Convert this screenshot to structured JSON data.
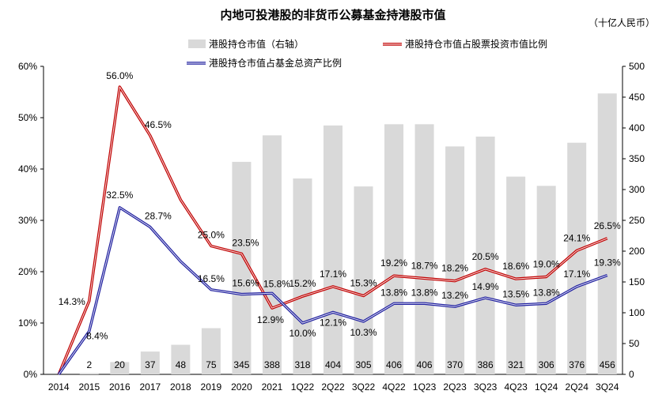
{
  "chart_data": {
    "type": "bar+line",
    "title": "内地可投港股的非货币公募基金持港股市值",
    "unit_label": "（十亿人民币）",
    "categories": [
      "2014",
      "2015",
      "2016",
      "2017",
      "2018",
      "2019",
      "2020",
      "2021",
      "1Q22",
      "2Q22",
      "3Q22",
      "4Q22",
      "1Q23",
      "2Q23",
      "3Q23",
      "4Q23",
      "1Q24",
      "2Q24",
      "3Q24"
    ],
    "left_axis": {
      "min": 0,
      "max": 60,
      "step": 10,
      "tick_labels": [
        "0%",
        "10%",
        "20%",
        "30%",
        "40%",
        "50%",
        "60%"
      ]
    },
    "right_axis": {
      "min": 0,
      "max": 500,
      "step": 50,
      "tick_labels": [
        "0",
        "50",
        "100",
        "150",
        "200",
        "250",
        "300",
        "350",
        "400",
        "450",
        "500"
      ]
    },
    "series": [
      {
        "name": "港股持仓市值（右轴）",
        "type": "bar",
        "axis": "right",
        "color": "#d9d9d9",
        "values": [
          0,
          2,
          20,
          37,
          48,
          75,
          345,
          388,
          318,
          404,
          305,
          406,
          406,
          370,
          386,
          321,
          306,
          376,
          456
        ],
        "labels": [
          "",
          "2",
          "20",
          "37",
          "48",
          "75",
          "345",
          "388",
          "318",
          "404",
          "305",
          "406",
          "406",
          "370",
          "386",
          "321",
          "306",
          "376",
          "456"
        ]
      },
      {
        "name": "港股持仓市值占股票投资市值比例",
        "type": "line",
        "axis": "left",
        "color": "#c00000",
        "values": [
          0,
          14.3,
          56.0,
          46.5,
          34.0,
          25.0,
          23.5,
          12.9,
          15.2,
          17.1,
          15.3,
          19.2,
          18.7,
          18.2,
          20.5,
          18.6,
          19.0,
          24.1,
          26.5
        ],
        "labels": [
          "",
          "14.3%",
          "56.0%",
          "46.5%",
          "",
          "25.0%",
          "23.5%",
          "12.9%",
          "15.2%",
          "17.1%",
          "15.3%",
          "19.2%",
          "18.7%",
          "18.2%",
          "20.5%",
          "18.6%",
          "19.0%",
          "24.1%",
          "26.5%"
        ]
      },
      {
        "name": "港股持仓市值占基金总资产比例",
        "type": "line",
        "axis": "left",
        "color": "#1f1f9f",
        "values": [
          0,
          8.4,
          32.5,
          28.7,
          22.0,
          16.5,
          15.6,
          15.8,
          10.0,
          12.1,
          10.3,
          13.8,
          13.8,
          13.2,
          14.9,
          13.5,
          13.8,
          17.1,
          19.3
        ],
        "labels": [
          "",
          "8.4%",
          "32.5%",
          "28.7%",
          "",
          "16.5%",
          "15.6%",
          "15.8%",
          "10.0%",
          "12.1%",
          "10.3%",
          "13.8%",
          "13.8%",
          "13.2%",
          "14.9%",
          "13.5%",
          "13.8%",
          "17.1%",
          "19.3%"
        ]
      }
    ],
    "legend_position": "top"
  }
}
